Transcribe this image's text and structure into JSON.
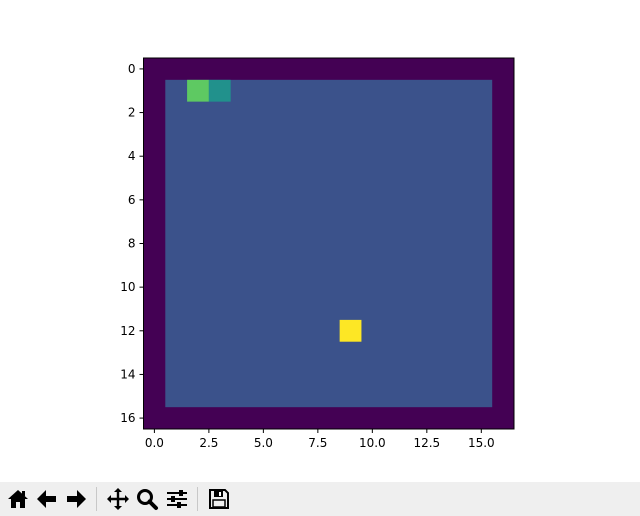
{
  "chart_data": {
    "type": "heatmap",
    "title": "",
    "xlabel": "",
    "ylabel": "",
    "grid": false,
    "colormap": "viridis",
    "xlim": [
      -0.5,
      16.5
    ],
    "ylim": [
      16.5,
      -0.5
    ],
    "x_ticks": [
      0.0,
      2.5,
      5.0,
      7.5,
      10.0,
      12.5,
      15.0
    ],
    "x_tick_labels": [
      "0.0",
      "2.5",
      "5.0",
      "7.5",
      "10.0",
      "12.5",
      "15.0"
    ],
    "y_ticks": [
      0,
      2,
      4,
      6,
      8,
      10,
      12,
      14,
      16
    ],
    "y_tick_labels": [
      "0",
      "2",
      "4",
      "6",
      "8",
      "10",
      "12",
      "14",
      "16"
    ],
    "grid_size": [
      17,
      17
    ],
    "border_value": 0,
    "interior_value": 1,
    "cells": [
      {
        "row": 1,
        "col": 2,
        "value": 4,
        "color": "#5ec962"
      },
      {
        "row": 1,
        "col": 3,
        "value": 3,
        "color": "#21918c"
      },
      {
        "row": 12,
        "col": 9,
        "value": 5,
        "color": "#fde725"
      }
    ],
    "colors": {
      "border": "#440154",
      "interior": "#3b528b"
    }
  },
  "toolbar": {
    "buttons": [
      {
        "name": "home-button",
        "icon": "home-icon"
      },
      {
        "name": "back-button",
        "icon": "arrow-left-icon"
      },
      {
        "name": "forward-button",
        "icon": "arrow-right-icon"
      },
      {
        "name": "pan-button",
        "icon": "move-icon"
      },
      {
        "name": "zoom-button",
        "icon": "magnifier-icon"
      },
      {
        "name": "configure-subplots-button",
        "icon": "sliders-icon"
      },
      {
        "name": "save-button",
        "icon": "floppy-disk-icon"
      }
    ]
  }
}
